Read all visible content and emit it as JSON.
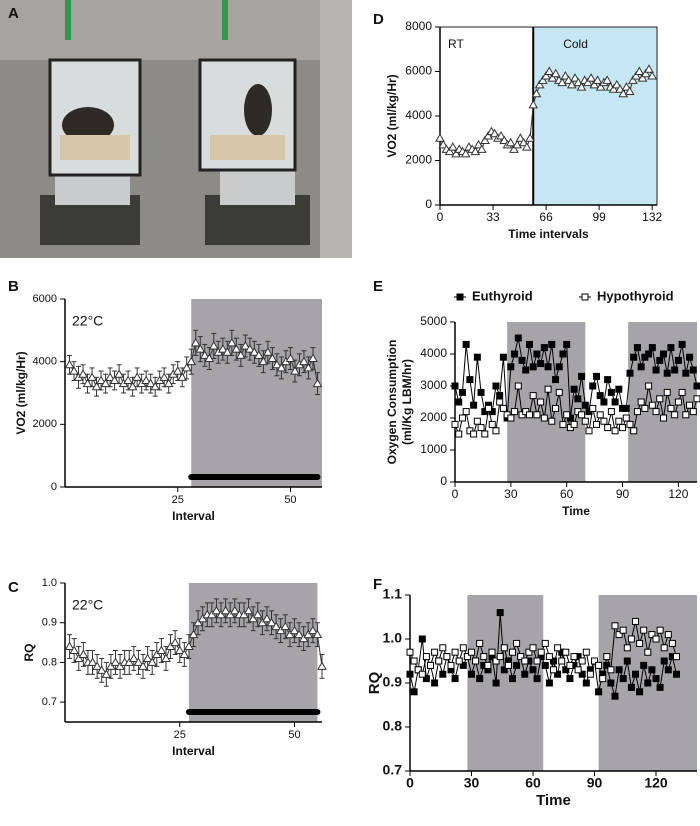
{
  "chart_data": [
    {
      "type": "image",
      "panel": "A"
    },
    {
      "type": "line",
      "panel": "B",
      "annotation": "22°C",
      "x_label": "Interval",
      "y_label": "VO2 (ml/kg/Hr)",
      "x": [
        1,
        2,
        3,
        4,
        5,
        6,
        7,
        8,
        9,
        10,
        11,
        12,
        13,
        14,
        15,
        16,
        17,
        18,
        19,
        20,
        21,
        22,
        23,
        24,
        25,
        26,
        27,
        28,
        29,
        30,
        31,
        32,
        33,
        34,
        35,
        36,
        37,
        38,
        39,
        40,
        41,
        42,
        43,
        44,
        45,
        46,
        47,
        48,
        49,
        50,
        51,
        52,
        53,
        54,
        55,
        56
      ],
      "xlim": [
        0,
        57
      ],
      "xticks": [
        25,
        50
      ],
      "ylim": [
        0,
        6000
      ],
      "yticks": [
        0,
        2000,
        4000,
        6000
      ],
      "shaded": [
        [
          28,
          57
        ]
      ],
      "shade_color": "#a6a4a9",
      "dark_period": [
        28,
        56
      ],
      "series": [
        {
          "color": "#333333",
          "marker": "triangle",
          "fill": "#ffffff",
          "values": [
            3900,
            3700,
            3500,
            3600,
            3300,
            3500,
            3200,
            3400,
            3300,
            3500,
            3400,
            3600,
            3300,
            3400,
            3200,
            3500,
            3300,
            3400,
            3300,
            3200,
            3400,
            3500,
            3300,
            3600,
            3700,
            3500,
            3800,
            4000,
            4600,
            4400,
            4200,
            4100,
            4500,
            4300,
            4400,
            4300,
            4600,
            4400,
            4200,
            4500,
            4400,
            4300,
            4200,
            4000,
            4300,
            4100,
            3900,
            3800,
            4000,
            4100,
            3700,
            3900,
            4000,
            3800,
            4100,
            3300
          ],
          "errors": [
            300,
            300,
            350,
            300,
            300,
            300,
            300,
            300,
            300,
            300,
            300,
            300,
            300,
            300,
            300,
            300,
            300,
            300,
            300,
            300,
            300,
            300,
            300,
            300,
            300,
            300,
            350,
            400,
            400,
            400,
            350,
            350,
            400,
            350,
            350,
            350,
            400,
            350,
            350,
            350,
            350,
            350,
            350,
            350,
            350,
            350,
            350,
            350,
            350,
            350,
            350,
            350,
            350,
            350,
            350,
            350
          ]
        }
      ]
    },
    {
      "type": "line",
      "panel": "C",
      "annotation": "22°C",
      "x_label": "Interval",
      "y_label": "RQ",
      "x": [
        1,
        2,
        3,
        4,
        5,
        6,
        7,
        8,
        9,
        10,
        11,
        12,
        13,
        14,
        15,
        16,
        17,
        18,
        19,
        20,
        21,
        22,
        23,
        24,
        25,
        26,
        27,
        28,
        29,
        30,
        31,
        32,
        33,
        34,
        35,
        36,
        37,
        38,
        39,
        40,
        41,
        42,
        43,
        44,
        45,
        46,
        47,
        48,
        49,
        50,
        51,
        52,
        53,
        54,
        55,
        56
      ],
      "xlim": [
        0,
        56
      ],
      "xticks": [
        25,
        50
      ],
      "ylim": [
        0.65,
        1.0
      ],
      "yticks": [
        0.7,
        0.8,
        0.9,
        {
          "value": 1.0,
          "label": "1.0"
        }
      ],
      "shaded": [
        [
          27,
          55
        ]
      ],
      "shade_color": "#a6a4a9",
      "dark_period": [
        27,
        55
      ],
      "series": [
        {
          "color": "#333333",
          "marker": "triangle",
          "fill": "#ffffff",
          "values": [
            0.84,
            0.83,
            0.81,
            0.82,
            0.8,
            0.8,
            0.79,
            0.78,
            0.77,
            0.79,
            0.8,
            0.79,
            0.8,
            0.8,
            0.81,
            0.8,
            0.79,
            0.81,
            0.8,
            0.82,
            0.83,
            0.81,
            0.84,
            0.85,
            0.83,
            0.82,
            0.84,
            0.87,
            0.9,
            0.91,
            0.92,
            0.92,
            0.93,
            0.92,
            0.93,
            0.92,
            0.93,
            0.92,
            0.92,
            0.93,
            0.91,
            0.92,
            0.9,
            0.91,
            0.9,
            0.89,
            0.88,
            0.89,
            0.87,
            0.88,
            0.87,
            0.86,
            0.87,
            0.88,
            0.87,
            0.79
          ],
          "errors": [
            0.03,
            0.03,
            0.03,
            0.03,
            0.03,
            0.03,
            0.03,
            0.03,
            0.03,
            0.03,
            0.03,
            0.03,
            0.03,
            0.03,
            0.03,
            0.03,
            0.03,
            0.03,
            0.03,
            0.03,
            0.03,
            0.03,
            0.03,
            0.03,
            0.03,
            0.03,
            0.03,
            0.03,
            0.03,
            0.03,
            0.03,
            0.03,
            0.03,
            0.03,
            0.03,
            0.03,
            0.03,
            0.03,
            0.03,
            0.03,
            0.03,
            0.03,
            0.03,
            0.03,
            0.03,
            0.03,
            0.03,
            0.03,
            0.03,
            0.03,
            0.03,
            0.03,
            0.03,
            0.03,
            0.03,
            0.03
          ]
        }
      ]
    },
    {
      "type": "line",
      "panel": "D",
      "x_label": "Time intervals",
      "y_label": "VO2 (ml/kg/Hr)",
      "region_labels": [
        "RT",
        "Cold"
      ],
      "x": [
        0,
        2,
        4,
        6,
        8,
        10,
        12,
        14,
        16,
        18,
        20,
        22,
        24,
        26,
        28,
        30,
        32,
        34,
        36,
        38,
        40,
        42,
        44,
        46,
        48,
        50,
        52,
        54,
        56,
        58,
        60,
        62,
        64,
        66,
        68,
        70,
        72,
        74,
        76,
        78,
        80,
        82,
        84,
        86,
        88,
        90,
        92,
        94,
        96,
        98,
        100,
        102,
        104,
        106,
        108,
        110,
        112,
        114,
        116,
        118,
        120,
        122,
        124,
        126,
        128,
        130,
        132
      ],
      "xlim": [
        0,
        135
      ],
      "xticks": [
        0,
        33,
        66,
        99,
        132
      ],
      "ylim": [
        0,
        8000
      ],
      "yticks": [
        0,
        2000,
        4000,
        6000,
        8000
      ],
      "shaded": [
        [
          58,
          135
        ]
      ],
      "shade_color": "#c5e6f3",
      "divider": 58,
      "series": [
        {
          "color": "#333333",
          "marker": "triangle",
          "fill": "#ffffff",
          "values": [
            3000,
            2700,
            2500,
            2400,
            2600,
            2300,
            2500,
            2400,
            2300,
            2600,
            2500,
            2400,
            2700,
            2500,
            2900,
            3100,
            3300,
            3200,
            3000,
            3100,
            2900,
            2700,
            2800,
            2500,
            2700,
            3000,
            2800,
            2600,
            3000,
            4500,
            5000,
            5400,
            5600,
            5800,
            6000,
            5700,
            5900,
            5600,
            5500,
            5800,
            5600,
            5400,
            5700,
            5500,
            5300,
            5600,
            5500,
            5700,
            5400,
            5600,
            5300,
            5500,
            5600,
            5300,
            5200,
            5400,
            5200,
            5000,
            5300,
            5100,
            5600,
            5800,
            6000,
            5700,
            5900,
            6100,
            5800
          ]
        }
      ]
    },
    {
      "type": "line",
      "panel": "E",
      "x_label": "Time",
      "y_label": [
        "Oxygen Consumption",
        "(ml/Kg LBM/hr)"
      ],
      "x": [
        0,
        2,
        4,
        6,
        8,
        10,
        12,
        14,
        16,
        18,
        20,
        22,
        24,
        26,
        28,
        30,
        32,
        34,
        36,
        38,
        40,
        42,
        44,
        46,
        48,
        50,
        52,
        54,
        56,
        58,
        60,
        62,
        64,
        66,
        68,
        70,
        72,
        74,
        76,
        78,
        80,
        82,
        84,
        86,
        88,
        90,
        92,
        94,
        96,
        98,
        100,
        102,
        104,
        106,
        108,
        110,
        112,
        114,
        116,
        118,
        120,
        122,
        124,
        126,
        128,
        130
      ],
      "xlim": [
        0,
        130
      ],
      "xticks": [
        0,
        30,
        60,
        90,
        120
      ],
      "ylim": [
        0,
        5000
      ],
      "yticks": [
        0,
        1000,
        2000,
        3000,
        4000,
        5000
      ],
      "shaded": [
        [
          28,
          70
        ],
        [
          93,
          130
        ]
      ],
      "shade_color": "#a6a4a9",
      "series": [
        {
          "name": "Euthyroid",
          "color": "#000000",
          "marker": "square",
          "fill": "#000000",
          "values": [
            3000,
            2500,
            2800,
            4300,
            3200,
            2400,
            3900,
            2800,
            2200,
            2400,
            2200,
            3000,
            2700,
            3900,
            2000,
            3600,
            4000,
            4500,
            3800,
            3500,
            4300,
            3600,
            4000,
            3700,
            4200,
            3600,
            4300,
            3200,
            3600,
            4000,
            4300,
            2000,
            2900,
            2600,
            3300,
            2400,
            2200,
            3000,
            3300,
            2700,
            2500,
            3200,
            2800,
            2500,
            2900,
            2300,
            2300,
            3400,
            3900,
            4200,
            3600,
            3900,
            4000,
            4200,
            3500,
            3800,
            4000,
            3400,
            4200,
            3500,
            3800,
            4300,
            3400,
            3900,
            3500,
            3000
          ]
        },
        {
          "name": "Hypothyroid",
          "color": "#000000",
          "marker": "square",
          "fill": "#ffffff",
          "values": [
            1800,
            1500,
            2000,
            2200,
            1600,
            1500,
            1900,
            1700,
            1500,
            2300,
            1800,
            1600,
            2500,
            2300,
            2100,
            2000,
            2200,
            3000,
            2100,
            2200,
            2100,
            2700,
            2100,
            2500,
            2000,
            2900,
            1900,
            2300,
            2800,
            1800,
            2100,
            1700,
            1800,
            2200,
            2100,
            1900,
            1600,
            2300,
            1800,
            2100,
            1900,
            1700,
            2200,
            1600,
            1900,
            1700,
            2000,
            1800,
            1600,
            2200,
            2500,
            2300,
            3000,
            2400,
            2200,
            2600,
            2000,
            2800,
            2300,
            2100,
            2500,
            2800,
            2100,
            2400,
            2200,
            2600
          ]
        }
      ]
    },
    {
      "type": "line",
      "panel": "F",
      "x_label": "Time",
      "y_label": "RQ",
      "x": [
        0,
        2,
        4,
        6,
        8,
        10,
        12,
        14,
        16,
        18,
        20,
        22,
        24,
        26,
        28,
        30,
        32,
        34,
        36,
        38,
        40,
        42,
        44,
        46,
        48,
        50,
        52,
        54,
        56,
        58,
        60,
        62,
        64,
        66,
        68,
        70,
        72,
        74,
        76,
        78,
        80,
        82,
        84,
        86,
        88,
        90,
        92,
        94,
        96,
        98,
        100,
        102,
        104,
        106,
        108,
        110,
        112,
        114,
        116,
        118,
        120,
        122,
        124,
        126,
        128,
        130
      ],
      "xlim": [
        0,
        140
      ],
      "xticks": [
        0,
        30,
        60,
        90,
        120
      ],
      "ylim": [
        0.7,
        1.1
      ],
      "yticks": [
        0.7,
        0.8,
        0.9,
        {
          "value": 1.0,
          "label": "1.0"
        },
        1.1
      ],
      "shaded": [
        [
          28,
          65
        ],
        [
          92,
          140
        ]
      ],
      "shade_color": "#a6a4a9",
      "series": [
        {
          "color": "#000000",
          "marker": "square",
          "fill": "#000000",
          "values": [
            0.92,
            0.88,
            0.93,
            1.0,
            0.91,
            0.94,
            0.9,
            0.95,
            0.92,
            0.96,
            0.93,
            0.91,
            0.95,
            0.94,
            0.96,
            0.92,
            0.95,
            0.91,
            0.94,
            0.93,
            0.96,
            0.9,
            1.06,
            0.93,
            0.95,
            0.91,
            0.94,
            0.96,
            0.92,
            0.95,
            0.93,
            0.91,
            0.96,
            0.94,
            0.9,
            0.95,
            0.92,
            0.97,
            0.93,
            0.91,
            0.94,
            0.96,
            0.92,
            0.9,
            0.93,
            0.95,
            0.88,
            0.92,
            0.94,
            0.9,
            0.87,
            0.93,
            0.91,
            0.95,
            0.89,
            0.92,
            0.88,
            0.94,
            0.9,
            0.93,
            0.91,
            0.89,
            0.95,
            0.93,
            0.96,
            0.92
          ]
        },
        {
          "color": "#000000",
          "marker": "square",
          "fill": "#ffffff",
          "values": [
            0.97,
            0.95,
            0.93,
            0.92,
            0.96,
            0.94,
            0.97,
            0.95,
            0.98,
            0.96,
            0.94,
            0.97,
            0.95,
            0.98,
            0.96,
            0.97,
            0.95,
            0.99,
            0.96,
            0.94,
            0.97,
            0.95,
            0.96,
            0.98,
            0.94,
            0.97,
            0.99,
            0.96,
            0.95,
            0.97,
            0.98,
            0.95,
            0.97,
            0.99,
            0.96,
            0.93,
            0.98,
            0.95,
            0.97,
            0.94,
            0.96,
            0.93,
            0.95,
            0.97,
            0.92,
            0.95,
            0.94,
            0.91,
            0.96,
            0.93,
            1.03,
            1.01,
            1.02,
            0.98,
            1.0,
            1.04,
            0.99,
            1.02,
            0.97,
            1.01,
            1.0,
            1.02,
            0.98,
            1.01,
            0.99,
            0.96
          ]
        }
      ]
    }
  ]
}
